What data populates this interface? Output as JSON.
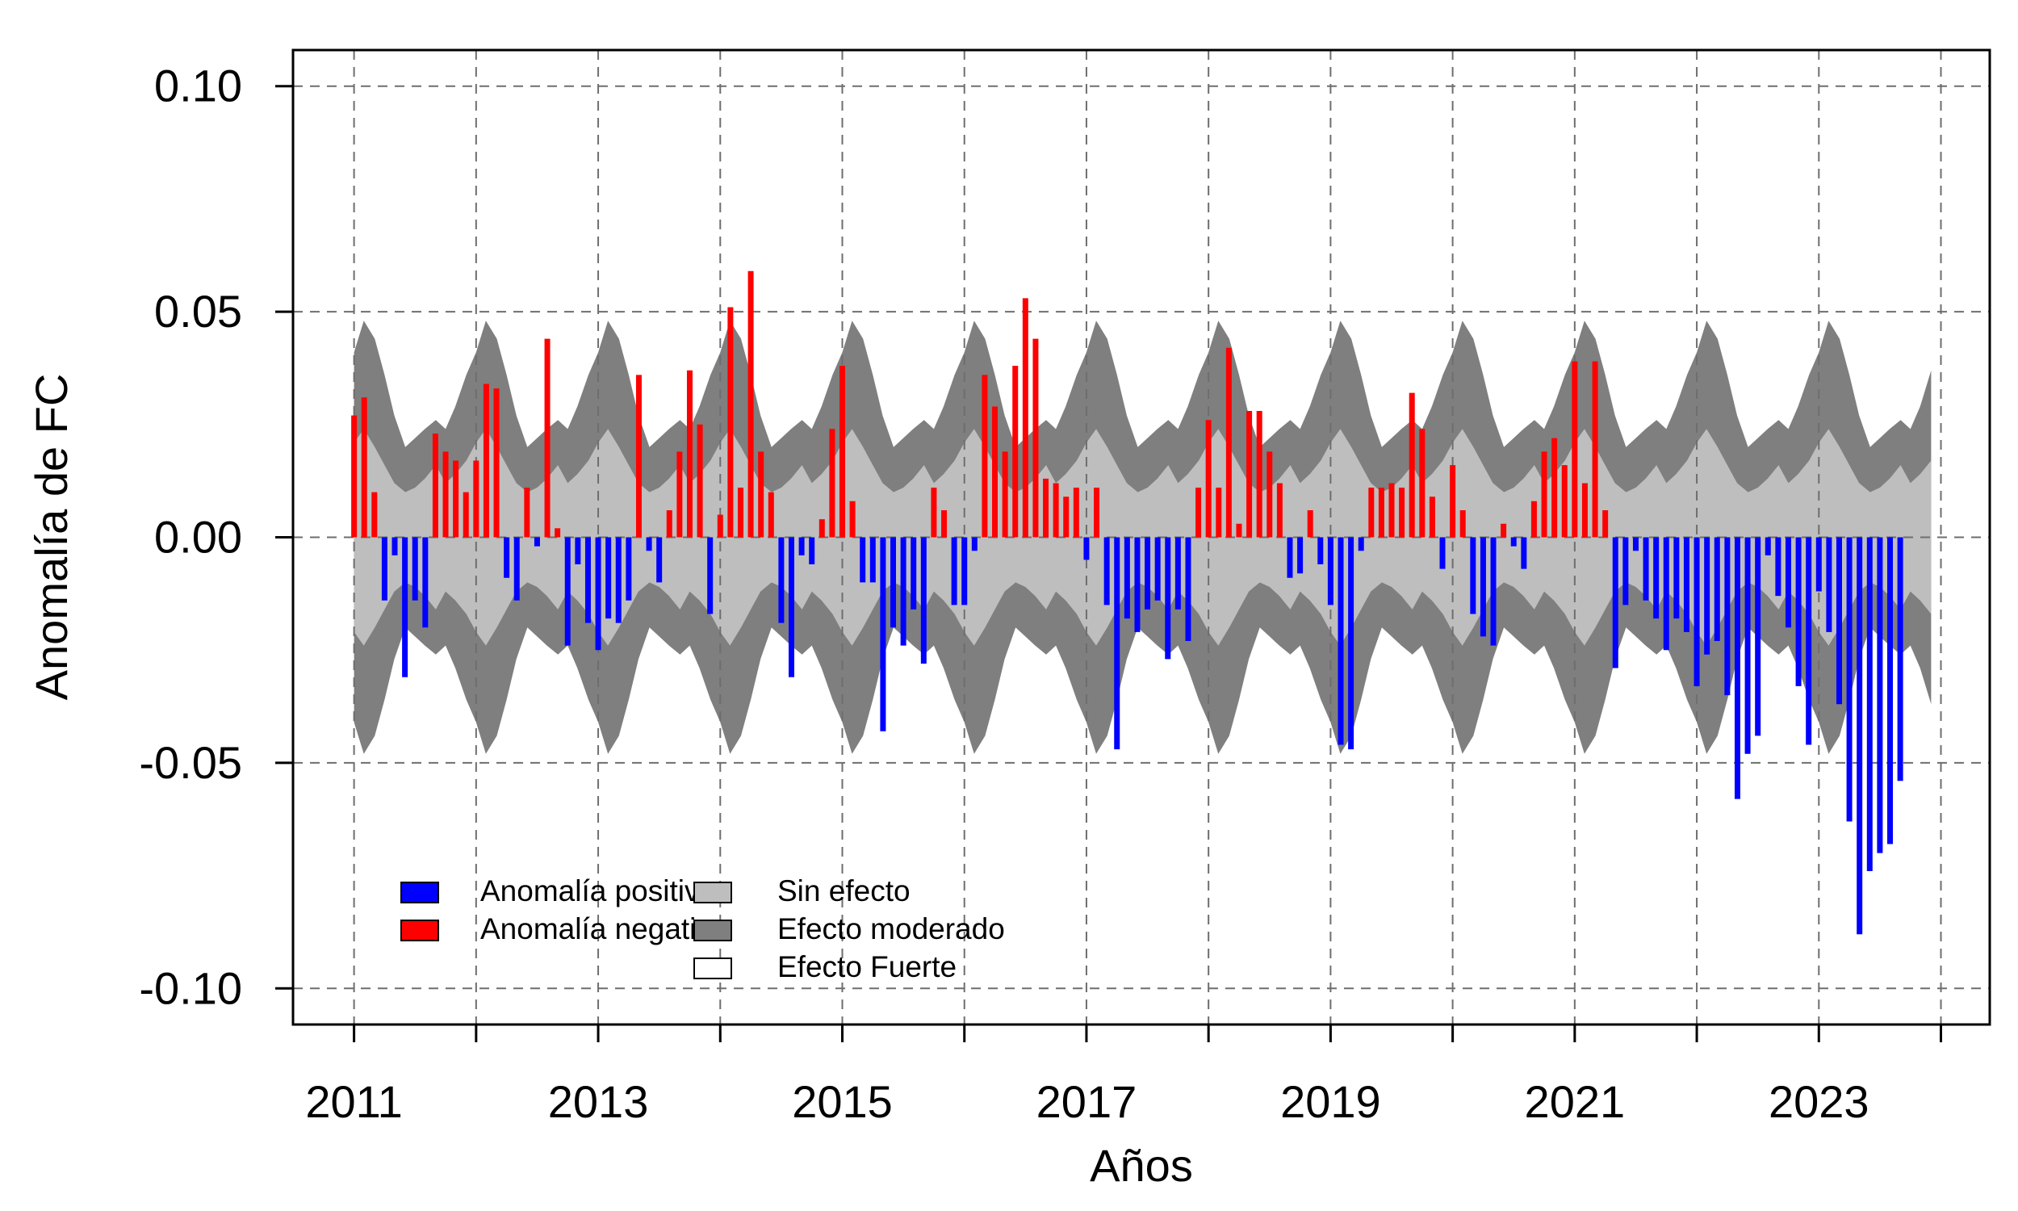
{
  "chart_data": {
    "type": "bar",
    "title": "",
    "xlabel": "Años",
    "ylabel": "Anomalía de FC",
    "x_ticks": [
      "2011",
      "2013",
      "2015",
      "2017",
      "2019",
      "2021",
      "2023"
    ],
    "y_ticks": [
      "0.10",
      "0.05",
      "0.00",
      "-0.05",
      "-0.10"
    ],
    "xlim": [
      2010.5,
      2024.4
    ],
    "ylim": [
      -0.108,
      0.108
    ],
    "grid": true,
    "legend_position": "bottom-left",
    "legend": [
      {
        "label": "Anomalía positiva",
        "color": "#0000ff"
      },
      {
        "label": "Anomalía negativa",
        "color": "#ff0000"
      },
      {
        "label": "Sin efecto",
        "color": "#bebebe"
      },
      {
        "label": "Efecto moderado",
        "color": "#7f7f7f"
      },
      {
        "label": "Efecto Fuerte",
        "color": "#ffffff"
      }
    ],
    "colors": {
      "positive_series": "#0000ff",
      "negative_series": "#ff0000",
      "sin_efecto": "#bebebe",
      "efecto_moderado": "#7f7f7f"
    },
    "start": "2011-01",
    "frequency": "monthly",
    "values": [
      0.027,
      0.031,
      0.01,
      -0.014,
      -0.004,
      -0.031,
      -0.014,
      -0.02,
      0.023,
      0.019,
      0.017,
      0.01,
      0.017,
      0.034,
      0.033,
      -0.009,
      -0.014,
      0.011,
      -0.002,
      0.044,
      0.002,
      -0.024,
      -0.006,
      -0.019,
      -0.025,
      -0.018,
      -0.019,
      -0.014,
      0.036,
      -0.003,
      -0.01,
      0.006,
      0.019,
      0.037,
      0.025,
      -0.017,
      0.005,
      0.051,
      0.011,
      0.059,
      0.019,
      0.01,
      -0.019,
      -0.031,
      -0.004,
      -0.006,
      0.004,
      0.024,
      0.038,
      0.008,
      -0.01,
      -0.01,
      -0.043,
      -0.02,
      -0.024,
      -0.016,
      -0.028,
      0.011,
      0.006,
      -0.015,
      -0.015,
      -0.003,
      0.036,
      0.029,
      0.019,
      0.038,
      0.053,
      0.044,
      0.013,
      0.012,
      0.009,
      0.011,
      -0.005,
      0.011,
      -0.015,
      -0.047,
      -0.018,
      -0.021,
      -0.016,
      -0.014,
      -0.027,
      -0.016,
      -0.023,
      0.011,
      0.026,
      0.011,
      0.042,
      0.003,
      0.028,
      0.028,
      0.019,
      0.012,
      -0.009,
      -0.008,
      0.006,
      -0.006,
      -0.015,
      -0.046,
      -0.047,
      -0.003,
      0.011,
      0.011,
      0.012,
      0.011,
      0.032,
      0.024,
      0.009,
      -0.007,
      0.016,
      0.006,
      -0.017,
      -0.022,
      -0.024,
      0.003,
      -0.002,
      -0.007,
      0.008,
      0.019,
      0.022,
      0.016,
      0.039,
      0.012,
      0.039,
      0.006,
      -0.029,
      -0.015,
      -0.003,
      -0.014,
      -0.018,
      -0.025,
      -0.018,
      -0.021,
      -0.033,
      -0.026,
      -0.023,
      -0.035,
      -0.058,
      -0.048,
      -0.044,
      -0.004,
      -0.013,
      -0.02,
      -0.033,
      -0.046,
      -0.012,
      -0.021,
      -0.037,
      -0.063,
      -0.088,
      -0.074,
      -0.07,
      -0.068,
      -0.054
    ],
    "bands": {
      "x": [
        2011.0,
        2011.08,
        2011.17,
        2011.25,
        2011.33,
        2011.42,
        2011.5,
        2011.58,
        2011.67,
        2011.75,
        2011.83,
        2011.92,
        2012.0,
        2012.08,
        2012.17,
        2012.25,
        2012.33,
        2012.42,
        2012.5,
        2012.58,
        2012.67,
        2012.75,
        2012.83,
        2012.92,
        2013.0,
        2013.08,
        2013.17,
        2013.25,
        2013.33,
        2013.42,
        2013.5,
        2013.58,
        2013.67,
        2013.75,
        2013.83,
        2013.92,
        2014.0,
        2014.08,
        2014.17,
        2014.25,
        2014.33,
        2014.42,
        2014.5,
        2014.58,
        2014.67,
        2014.75,
        2014.83,
        2014.92,
        2015.0,
        2015.08,
        2015.17,
        2015.25,
        2015.33,
        2015.42,
        2015.5,
        2015.58,
        2015.67,
        2015.75,
        2015.83,
        2015.92,
        2016.0,
        2016.08,
        2016.17,
        2016.25,
        2016.33,
        2016.42,
        2016.5,
        2016.58,
        2016.67,
        2016.75,
        2016.83,
        2016.92,
        2017.0,
        2017.08,
        2017.17,
        2017.25,
        2017.33,
        2017.42,
        2017.5,
        2017.58,
        2017.67,
        2017.75,
        2017.83,
        2017.92,
        2018.0,
        2018.08,
        2018.17,
        2018.25,
        2018.33,
        2018.42,
        2018.5,
        2018.58,
        2018.67,
        2018.75,
        2018.83,
        2018.92,
        2019.0,
        2019.08,
        2019.17,
        2019.25,
        2019.33,
        2019.42,
        2019.5,
        2019.58,
        2019.67,
        2019.75,
        2019.83,
        2019.92,
        2020.0,
        2020.08,
        2020.17,
        2020.25,
        2020.33,
        2020.42,
        2020.5,
        2020.58,
        2020.67,
        2020.75,
        2020.83,
        2020.92,
        2021.0,
        2021.08,
        2021.17,
        2021.25,
        2021.33,
        2021.42,
        2021.5,
        2021.58,
        2021.67,
        2021.75,
        2021.83,
        2021.92,
        2022.0,
        2022.08,
        2022.17,
        2022.25,
        2022.33,
        2022.42,
        2022.5,
        2022.58,
        2022.67,
        2022.75,
        2022.83,
        2022.92,
        2023.0,
        2023.08,
        2023.17,
        2023.25,
        2023.33,
        2023.42,
        2023.5,
        2023.58,
        2023.67,
        2023.75,
        2023.83,
        2023.92
      ],
      "sin_efecto_upper": [
        0.021,
        0.024,
        0.02,
        0.016,
        0.012,
        0.01,
        0.011,
        0.013,
        0.016,
        0.012,
        0.014,
        0.017,
        0.021,
        0.024,
        0.02,
        0.016,
        0.012,
        0.01,
        0.011,
        0.013,
        0.016,
        0.012,
        0.014,
        0.017,
        0.021,
        0.024,
        0.02,
        0.016,
        0.012,
        0.01,
        0.011,
        0.013,
        0.016,
        0.012,
        0.014,
        0.017,
        0.021,
        0.024,
        0.02,
        0.016,
        0.012,
        0.01,
        0.011,
        0.013,
        0.016,
        0.012,
        0.014,
        0.017,
        0.021,
        0.024,
        0.02,
        0.016,
        0.012,
        0.01,
        0.011,
        0.013,
        0.016,
        0.012,
        0.014,
        0.017,
        0.021,
        0.024,
        0.02,
        0.016,
        0.012,
        0.01,
        0.011,
        0.013,
        0.016,
        0.012,
        0.014,
        0.017,
        0.021,
        0.024,
        0.02,
        0.016,
        0.012,
        0.01,
        0.011,
        0.013,
        0.016,
        0.012,
        0.014,
        0.017,
        0.021,
        0.024,
        0.02,
        0.016,
        0.012,
        0.01,
        0.011,
        0.013,
        0.016,
        0.012,
        0.014,
        0.017,
        0.021,
        0.024,
        0.02,
        0.016,
        0.012,
        0.01,
        0.011,
        0.013,
        0.016,
        0.012,
        0.014,
        0.017,
        0.021,
        0.024,
        0.02,
        0.016,
        0.012,
        0.01,
        0.011,
        0.013,
        0.016,
        0.012,
        0.014,
        0.017,
        0.021,
        0.024,
        0.02,
        0.016,
        0.012,
        0.01,
        0.011,
        0.013,
        0.016,
        0.012,
        0.014,
        0.017,
        0.021,
        0.024,
        0.02,
        0.016,
        0.012,
        0.01,
        0.011,
        0.013,
        0.016,
        0.012,
        0.014,
        0.017,
        0.021,
        0.024,
        0.02,
        0.016,
        0.012,
        0.01,
        0.011,
        0.013,
        0.016,
        0.012,
        0.014,
        0.017
      ],
      "moderado_upper": [
        0.041,
        0.048,
        0.044,
        0.036,
        0.027,
        0.02,
        0.022,
        0.024,
        0.026,
        0.024,
        0.029,
        0.036,
        0.041,
        0.048,
        0.044,
        0.036,
        0.027,
        0.02,
        0.022,
        0.024,
        0.026,
        0.024,
        0.029,
        0.036,
        0.041,
        0.048,
        0.044,
        0.036,
        0.027,
        0.02,
        0.022,
        0.024,
        0.026,
        0.024,
        0.029,
        0.036,
        0.041,
        0.048,
        0.044,
        0.036,
        0.027,
        0.02,
        0.022,
        0.024,
        0.026,
        0.024,
        0.029,
        0.036,
        0.041,
        0.048,
        0.044,
        0.036,
        0.027,
        0.02,
        0.022,
        0.024,
        0.026,
        0.024,
        0.029,
        0.036,
        0.041,
        0.048,
        0.044,
        0.036,
        0.027,
        0.02,
        0.022,
        0.024,
        0.026,
        0.024,
        0.029,
        0.036,
        0.041,
        0.048,
        0.044,
        0.036,
        0.027,
        0.02,
        0.022,
        0.024,
        0.026,
        0.024,
        0.029,
        0.036,
        0.041,
        0.048,
        0.044,
        0.036,
        0.027,
        0.02,
        0.022,
        0.024,
        0.026,
        0.024,
        0.029,
        0.036,
        0.041,
        0.048,
        0.044,
        0.036,
        0.027,
        0.02,
        0.022,
        0.024,
        0.026,
        0.024,
        0.029,
        0.036,
        0.041,
        0.048,
        0.044,
        0.036,
        0.027,
        0.02,
        0.022,
        0.024,
        0.026,
        0.024,
        0.029,
        0.036,
        0.041,
        0.048,
        0.044,
        0.036,
        0.027,
        0.02,
        0.022,
        0.024,
        0.026,
        0.024,
        0.029,
        0.036,
        0.041,
        0.048,
        0.044,
        0.036,
        0.027,
        0.02,
        0.022,
        0.024,
        0.026,
        0.024,
        0.029,
        0.036,
        0.041,
        0.048,
        0.044,
        0.036,
        0.027,
        0.02,
        0.022,
        0.024,
        0.026,
        0.024,
        0.029,
        0.037
      ]
    }
  }
}
